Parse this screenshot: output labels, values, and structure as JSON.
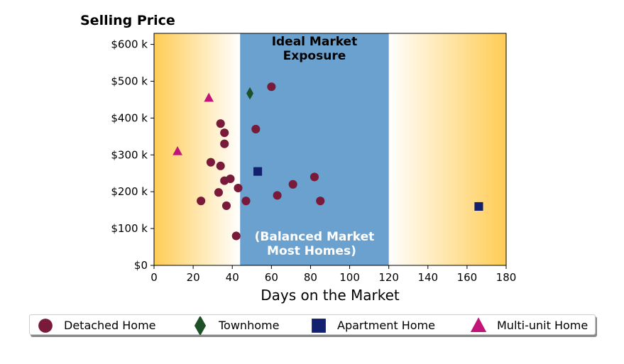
{
  "chart_data": {
    "type": "scatter",
    "title": "Selling Price",
    "xlabel": "Days on the Market",
    "ylabel": "",
    "xlim": [
      0,
      180
    ],
    "ylim": [
      0,
      630000
    ],
    "xticks": [
      0,
      20,
      40,
      60,
      80,
      100,
      120,
      140,
      160,
      180
    ],
    "xtick_labels": [
      "0",
      "20",
      "40",
      "60",
      "80",
      "100",
      "120",
      "140",
      "160",
      "180"
    ],
    "yticks": [
      0,
      100000,
      200000,
      300000,
      400000,
      500000,
      600000
    ],
    "ytick_labels": [
      "$0",
      "$100 k",
      "$200 k",
      "$300 k",
      "$400 k",
      "$500 k",
      "$600 k"
    ],
    "grid": false,
    "legend_position": "bottom",
    "shaded_region": {
      "x_range": [
        44,
        120
      ],
      "color": "#6aa1cf",
      "label_top": [
        "Ideal Market",
        "Exposure"
      ],
      "label_bottom": [
        "(Balanced Market",
        "Most Homes)"
      ]
    },
    "background_gradient": {
      "edge_color": "#ffcc55",
      "center_color": "#ffffff"
    },
    "series": [
      {
        "name": "Detached Home",
        "marker": "circle",
        "color": "#7a1a3a",
        "points": [
          [
            24,
            175000
          ],
          [
            29,
            280000
          ],
          [
            33,
            198000
          ],
          [
            34,
            385000
          ],
          [
            34,
            270000
          ],
          [
            36,
            360000
          ],
          [
            36,
            330000
          ],
          [
            36,
            230000
          ],
          [
            37,
            162000
          ],
          [
            39,
            235000
          ],
          [
            42,
            80000
          ],
          [
            43,
            210000
          ],
          [
            47,
            175000
          ],
          [
            52,
            370000
          ],
          [
            60,
            485000
          ],
          [
            63,
            190000
          ],
          [
            71,
            220000
          ],
          [
            82,
            240000
          ],
          [
            85,
            175000
          ]
        ]
      },
      {
        "name": "Townhome",
        "marker": "diamond",
        "color": "#1e5128",
        "points": [
          [
            49,
            467000
          ]
        ]
      },
      {
        "name": "Apartment Home",
        "marker": "square",
        "color": "#13206e",
        "points": [
          [
            53,
            255000
          ],
          [
            166,
            160000
          ]
        ]
      },
      {
        "name": "Multi-unit Home",
        "marker": "triangle",
        "color": "#c0147a",
        "points": [
          [
            12,
            310000
          ],
          [
            28,
            455000
          ]
        ]
      }
    ]
  }
}
